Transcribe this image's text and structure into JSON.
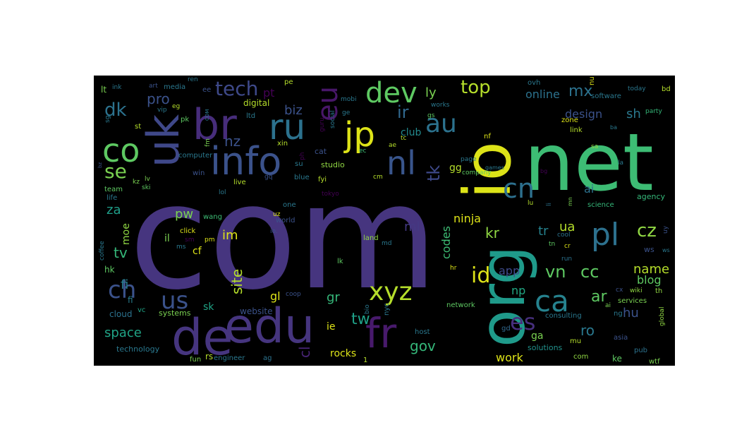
{
  "words": [
    {
      "t": "com",
      "c": "#46357f"
    },
    {
      "t": "net",
      "c": "#3dbc74"
    },
    {
      "t": "org",
      "c": "#1f9a8a"
    },
    {
      "t": "io",
      "c": "#dde318"
    },
    {
      "t": "edu",
      "c": "#46357f"
    },
    {
      "t": "de",
      "c": "#46357f"
    },
    {
      "t": "fr",
      "c": "#481a6c"
    },
    {
      "t": "uk",
      "c": "#3f4889"
    },
    {
      "t": "br",
      "c": "#472d7b"
    },
    {
      "t": "info",
      "c": "#3b528b"
    },
    {
      "t": "ru",
      "c": "#2c728e"
    },
    {
      "t": "co",
      "c": "#5ec962"
    },
    {
      "t": "jp",
      "c": "#dde318"
    },
    {
      "t": "nl",
      "c": "#39558c"
    },
    {
      "t": "dev",
      "c": "#5ec962"
    },
    {
      "t": "eu",
      "c": "#481769"
    },
    {
      "t": "au",
      "c": "#2c728e"
    },
    {
      "t": "cn",
      "c": "#2d708e"
    },
    {
      "t": "pl",
      "c": "#2d718e"
    },
    {
      "t": "xyz",
      "c": "#b5de2b"
    },
    {
      "t": "ca",
      "c": "#26828e"
    },
    {
      "t": "ch",
      "c": "#3b528b"
    },
    {
      "t": "us",
      "c": "#3b528b"
    },
    {
      "t": "es",
      "c": "#472f7d"
    },
    {
      "t": "tech",
      "c": "#3e4989"
    },
    {
      "t": "top",
      "c": "#b5de2b"
    },
    {
      "t": "dk",
      "c": "#2c728e"
    },
    {
      "t": "se",
      "c": "#7ad151"
    },
    {
      "t": "id",
      "c": "#dde318"
    },
    {
      "t": "tk",
      "c": "#3e4989"
    },
    {
      "t": "vn",
      "c": "#5ec962"
    },
    {
      "t": "cc",
      "c": "#5ec962"
    },
    {
      "t": "cz",
      "c": "#90d743"
    },
    {
      "t": "mx",
      "c": "#2c728e"
    },
    {
      "t": "ir",
      "c": "#31688e"
    },
    {
      "t": "ar",
      "c": "#5ec962"
    },
    {
      "t": "tw",
      "c": "#1fa188"
    },
    {
      "t": "gov",
      "c": "#35b779"
    },
    {
      "t": "ro",
      "c": "#2a788e"
    },
    {
      "t": "tv",
      "c": "#35b779"
    },
    {
      "t": "name",
      "c": "#b5de2b"
    },
    {
      "t": "space",
      "c": "#20a486"
    },
    {
      "t": "pro",
      "c": "#3b528b"
    },
    {
      "t": "biz",
      "c": "#3b528b"
    },
    {
      "t": "nz",
      "c": "#3b528b"
    },
    {
      "t": "ly",
      "c": "#7ad151"
    },
    {
      "t": "kr",
      "c": "#90d743"
    },
    {
      "t": "za",
      "c": "#1f9e89"
    },
    {
      "t": "pw",
      "c": "#7ad151"
    },
    {
      "t": "im",
      "c": "#dde318"
    },
    {
      "t": "ua",
      "c": "#b5de2b"
    },
    {
      "t": "tr",
      "c": "#26828e"
    },
    {
      "t": "hu",
      "c": "#3b528b"
    },
    {
      "t": "fi",
      "c": "#287c8e"
    },
    {
      "t": "gr",
      "c": "#35b779"
    },
    {
      "t": "site",
      "c": "#b5de2b"
    },
    {
      "t": "codes",
      "c": "#3dbc74"
    },
    {
      "t": "ninja",
      "c": "#dde318"
    },
    {
      "t": "ml",
      "c": "#443983"
    },
    {
      "t": "sh",
      "c": "#2a788e"
    },
    {
      "t": "ai",
      "c": "#2c728e"
    },
    {
      "t": "blog",
      "c": "#5ec962"
    },
    {
      "t": "np",
      "c": "#22a884"
    },
    {
      "t": "work",
      "c": "#dde318"
    },
    {
      "t": "app",
      "c": "#3e4989"
    },
    {
      "t": "design",
      "c": "#3b528b"
    },
    {
      "t": "online",
      "c": "#2c728e"
    },
    {
      "t": "club",
      "c": "#238a8d"
    },
    {
      "t": "gg",
      "c": "#b5de2b"
    },
    {
      "t": "ie",
      "c": "#dde318"
    },
    {
      "t": "cl",
      "c": "#482475"
    },
    {
      "t": "gl",
      "c": "#dde318"
    },
    {
      "t": "sk",
      "c": "#20a486"
    },
    {
      "t": "moe",
      "c": "#90d743"
    },
    {
      "t": "ga",
      "c": "#7ad151"
    },
    {
      "t": "il",
      "c": "#7ad151"
    },
    {
      "t": "cf",
      "c": "#dde318"
    },
    {
      "t": "rocks",
      "c": "#dde318"
    },
    {
      "t": "website",
      "c": "#3b528b"
    },
    {
      "t": "digital",
      "c": "#b5de2b"
    },
    {
      "t": "pt",
      "c": "#440154"
    },
    {
      "t": "hk",
      "c": "#5ec962"
    },
    {
      "t": "fi",
      "c": "#287c8e"
    },
    {
      "t": "cloud",
      "c": "#2c728e"
    },
    {
      "t": "systems",
      "c": "#7ad151"
    },
    {
      "t": "vc",
      "c": "#20a486"
    },
    {
      "t": "technology",
      "c": "#2a788e"
    },
    {
      "t": "fun",
      "c": "#7ad151"
    },
    {
      "t": "rs",
      "c": "#b5de2b"
    },
    {
      "t": "engineer",
      "c": "#2a788e"
    },
    {
      "t": "ag",
      "c": "#2c728e"
    },
    {
      "t": "1",
      "c": "#b5de2b"
    },
    {
      "t": "solutions",
      "c": "#21918c"
    },
    {
      "t": "com",
      "c": "#90d743"
    },
    {
      "t": "mu",
      "c": "#b5de2b"
    },
    {
      "t": "ke",
      "c": "#5ec962"
    },
    {
      "t": "wtf",
      "c": "#7ad151"
    },
    {
      "t": "pub",
      "c": "#2c728e"
    },
    {
      "t": "consulting",
      "c": "#2a788e"
    },
    {
      "t": "gd",
      "c": "#31688e"
    },
    {
      "t": "host",
      "c": "#2a788e"
    },
    {
      "t": "nyc",
      "c": "#2a788e"
    },
    {
      "t": "bio",
      "c": "#2a788e"
    },
    {
      "t": "network",
      "c": "#5ec962"
    },
    {
      "t": "coop",
      "c": "#3b528b"
    },
    {
      "t": "world",
      "c": "#3b528b"
    },
    {
      "t": "md",
      "c": "#2a788e"
    },
    {
      "t": "land",
      "c": "#90d743"
    },
    {
      "t": "lk",
      "c": "#5ec962"
    },
    {
      "t": "hr",
      "c": "#dde318"
    },
    {
      "t": "cool",
      "c": "#2c728e"
    },
    {
      "t": "run",
      "c": "#2c728e"
    },
    {
      "t": "cr",
      "c": "#dde318"
    },
    {
      "t": "tn",
      "c": "#5ec962"
    },
    {
      "t": "ws",
      "c": "#3b528b"
    },
    {
      "t": "science",
      "c": "#35b779"
    },
    {
      "t": "agency",
      "c": "#35b779"
    },
    {
      "t": "lu",
      "c": "#b5de2b"
    },
    {
      "t": "li",
      "c": "#2c728e"
    },
    {
      "t": "mn",
      "c": "#7ad151"
    },
    {
      "t": "asia",
      "c": "#3b528b"
    },
    {
      "t": "services",
      "c": "#7ad151"
    },
    {
      "t": "wiki",
      "c": "#90d743"
    },
    {
      "t": "th",
      "c": "#90d743"
    },
    {
      "t": "cx",
      "c": "#3b528b"
    },
    {
      "t": "ai",
      "c": "#7ad151"
    },
    {
      "t": "ng",
      "c": "#2a788e"
    },
    {
      "t": "global",
      "c": "#90d743"
    },
    {
      "t": "uy",
      "c": "#3b528b"
    },
    {
      "t": "la",
      "c": "#2a788e"
    },
    {
      "t": "bg",
      "c": "#440154"
    },
    {
      "t": "games",
      "c": "#2a788e"
    },
    {
      "t": "company",
      "c": "#5ec962"
    },
    {
      "t": "page",
      "c": "#2a788e"
    },
    {
      "t": "nf",
      "c": "#dde318"
    },
    {
      "t": "sa",
      "c": "#90d743"
    },
    {
      "t": "ba",
      "c": "#2a788e"
    },
    {
      "t": "link",
      "c": "#b5de2b"
    },
    {
      "t": "zone",
      "c": "#dde318"
    },
    {
      "t": "party",
      "c": "#35b779"
    },
    {
      "t": "nu",
      "c": "#dde318"
    },
    {
      "t": "software",
      "c": "#2a788e"
    },
    {
      "t": "today",
      "c": "#2a788e"
    },
    {
      "t": "bd",
      "c": "#b5de2b"
    },
    {
      "t": "ovh",
      "c": "#2a788e"
    },
    {
      "t": "works",
      "c": "#2a788e"
    },
    {
      "t": "gs",
      "c": "#5ec962"
    },
    {
      "t": "mobi",
      "c": "#2a788e"
    },
    {
      "t": "ge",
      "c": "#2a788e"
    },
    {
      "t": "social",
      "c": "#2a788e"
    },
    {
      "t": "guru",
      "c": "#440154"
    },
    {
      "t": "ec",
      "c": "#3dbc74"
    },
    {
      "t": "ae",
      "c": "#b5de2b"
    },
    {
      "t": "tc",
      "c": "#b5de2b"
    },
    {
      "t": "cm",
      "c": "#b5de2b"
    },
    {
      "t": "tokyo",
      "c": "#440154"
    },
    {
      "t": "fyi",
      "c": "#b5de2b"
    },
    {
      "t": "blue",
      "c": "#2a788e"
    },
    {
      "t": "studio",
      "c": "#90d743"
    },
    {
      "t": "cat",
      "c": "#3b528b"
    },
    {
      "t": "xin",
      "c": "#b5de2b"
    },
    {
      "t": "su",
      "c": "#2a788e"
    },
    {
      "t": "ph",
      "c": "#440154"
    },
    {
      "t": "gq",
      "c": "#3b528b"
    },
    {
      "t": "live",
      "c": "#b5de2b"
    },
    {
      "t": "uz",
      "c": "#dde318"
    },
    {
      "t": "one",
      "c": "#2a788e"
    },
    {
      "t": "io.",
      "c": "#3b528b"
    },
    {
      "t": "lol",
      "c": "#2a788e"
    },
    {
      "t": "wang",
      "c": "#3dbc74"
    },
    {
      "t": "click",
      "c": "#dde318"
    },
    {
      "t": "pm",
      "c": "#dde318"
    },
    {
      "t": "ms",
      "c": "#2a788e"
    },
    {
      "t": "win",
      "c": "#3b528b"
    },
    {
      "t": "computer",
      "c": "#2a788e"
    },
    {
      "t": "ltd",
      "c": "#2a788e"
    },
    {
      "t": "fm",
      "c": "#7ad151"
    },
    {
      "t": "pk",
      "c": "#5ec962"
    },
    {
      "t": "COM",
      "c": "#2a788e"
    },
    {
      "t": "ee",
      "c": "#3b528b"
    },
    {
      "t": "ren",
      "c": "#2a788e"
    },
    {
      "t": "pe",
      "c": "#b5de2b"
    },
    {
      "t": "media",
      "c": "#2a788e"
    },
    {
      "t": "art",
      "c": "#3b528b"
    },
    {
      "t": "eg",
      "c": "#b5de2b"
    },
    {
      "t": "vip",
      "c": "#2a788e"
    },
    {
      "t": "st",
      "c": "#b5de2b"
    },
    {
      "t": "ink",
      "c": "#2a788e"
    },
    {
      "t": "lt",
      "c": "#7ad151"
    },
    {
      "t": "sg",
      "c": "#2a788e"
    },
    {
      "t": "team",
      "c": "#5ec962"
    },
    {
      "t": "life",
      "c": "#2a788e"
    },
    {
      "t": "kz",
      "c": "#7ad151"
    },
    {
      "t": "lv",
      "c": "#7ad151"
    },
    {
      "t": "ski",
      "c": "#5ec962"
    },
    {
      "t": "coffee",
      "c": "#2a788e"
    },
    {
      "t": "bz",
      "c": "#3b528b"
    },
    {
      "t": "sm",
      "c": "#440154"
    },
    {
      "t": "ws",
      "c": "#2a788e"
    }
  ]
}
